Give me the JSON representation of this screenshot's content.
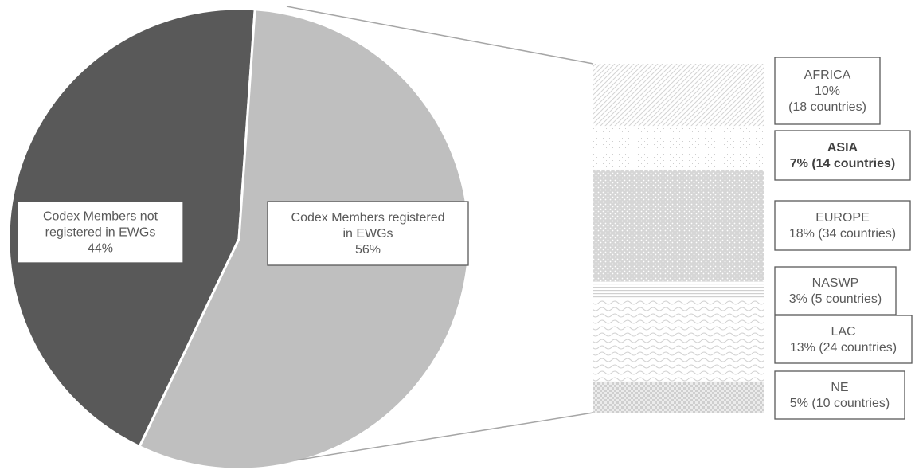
{
  "chart_data": {
    "type": "pie",
    "slices": [
      {
        "label_lines": [
          "Codex Members not",
          "registered in EWGs",
          "44%"
        ],
        "value": 44,
        "color": "#595959"
      },
      {
        "label_lines": [
          "Codex Members registered",
          "in EWGs",
          "56%"
        ],
        "value": 56,
        "color": "#bfbfbf"
      }
    ],
    "breakdown": {
      "of_slice": "Codex Members registered in EWGs",
      "type": "stacked-bar",
      "segments": [
        {
          "region": "AFRICA",
          "label_lines": [
            "AFRICA",
            "10%",
            "(18 countries)"
          ],
          "percent": 10,
          "countries": 18,
          "pattern": "diag",
          "bold": false
        },
        {
          "region": "ASIA",
          "label_lines": [
            "ASIA",
            "7% (14 countries)"
          ],
          "percent": 7,
          "countries": 14,
          "pattern": "sparse-dots",
          "bold": true
        },
        {
          "region": "EUROPE",
          "label_lines": [
            "EUROPE",
            "18% (34 countries)"
          ],
          "percent": 18,
          "countries": 34,
          "pattern": "dots",
          "bold": false
        },
        {
          "region": "NASWP",
          "label_lines": [
            "NASWP",
            "3% (5 countries)"
          ],
          "percent": 3,
          "countries": 5,
          "pattern": "hlines",
          "bold": false
        },
        {
          "region": "LAC",
          "label_lines": [
            "LAC",
            "13% (24 countries)"
          ],
          "percent": 13,
          "countries": 24,
          "pattern": "waves",
          "bold": false
        },
        {
          "region": "NE",
          "label_lines": [
            "NE",
            "5% (10 countries)"
          ],
          "percent": 5,
          "countries": 10,
          "pattern": "checker",
          "bold": false
        }
      ]
    }
  }
}
